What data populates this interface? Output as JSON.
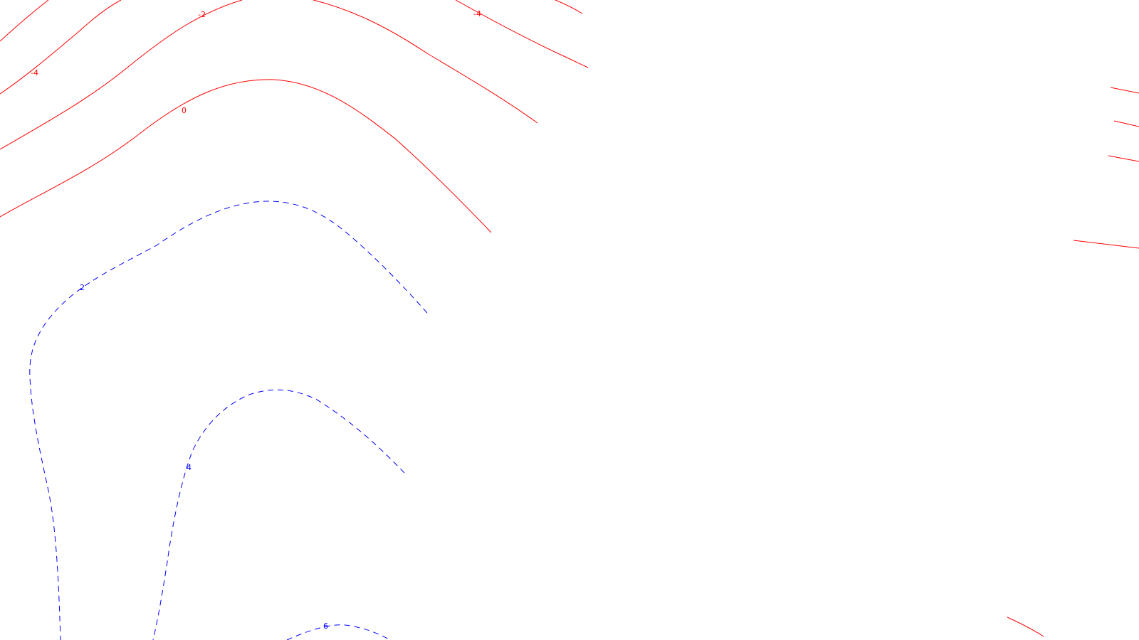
{
  "colors": {
    "background": "#ffffff",
    "negative": "#ff0000",
    "positive": "#0000ff"
  },
  "styles": {
    "negative": "solid",
    "positive": "dashed"
  },
  "labels": {
    "neg4_left": "-4",
    "neg2": "-2",
    "neg4_right": "-4",
    "zero": "0",
    "pos2": "2",
    "pos4": "4",
    "pos6": "6"
  }
}
